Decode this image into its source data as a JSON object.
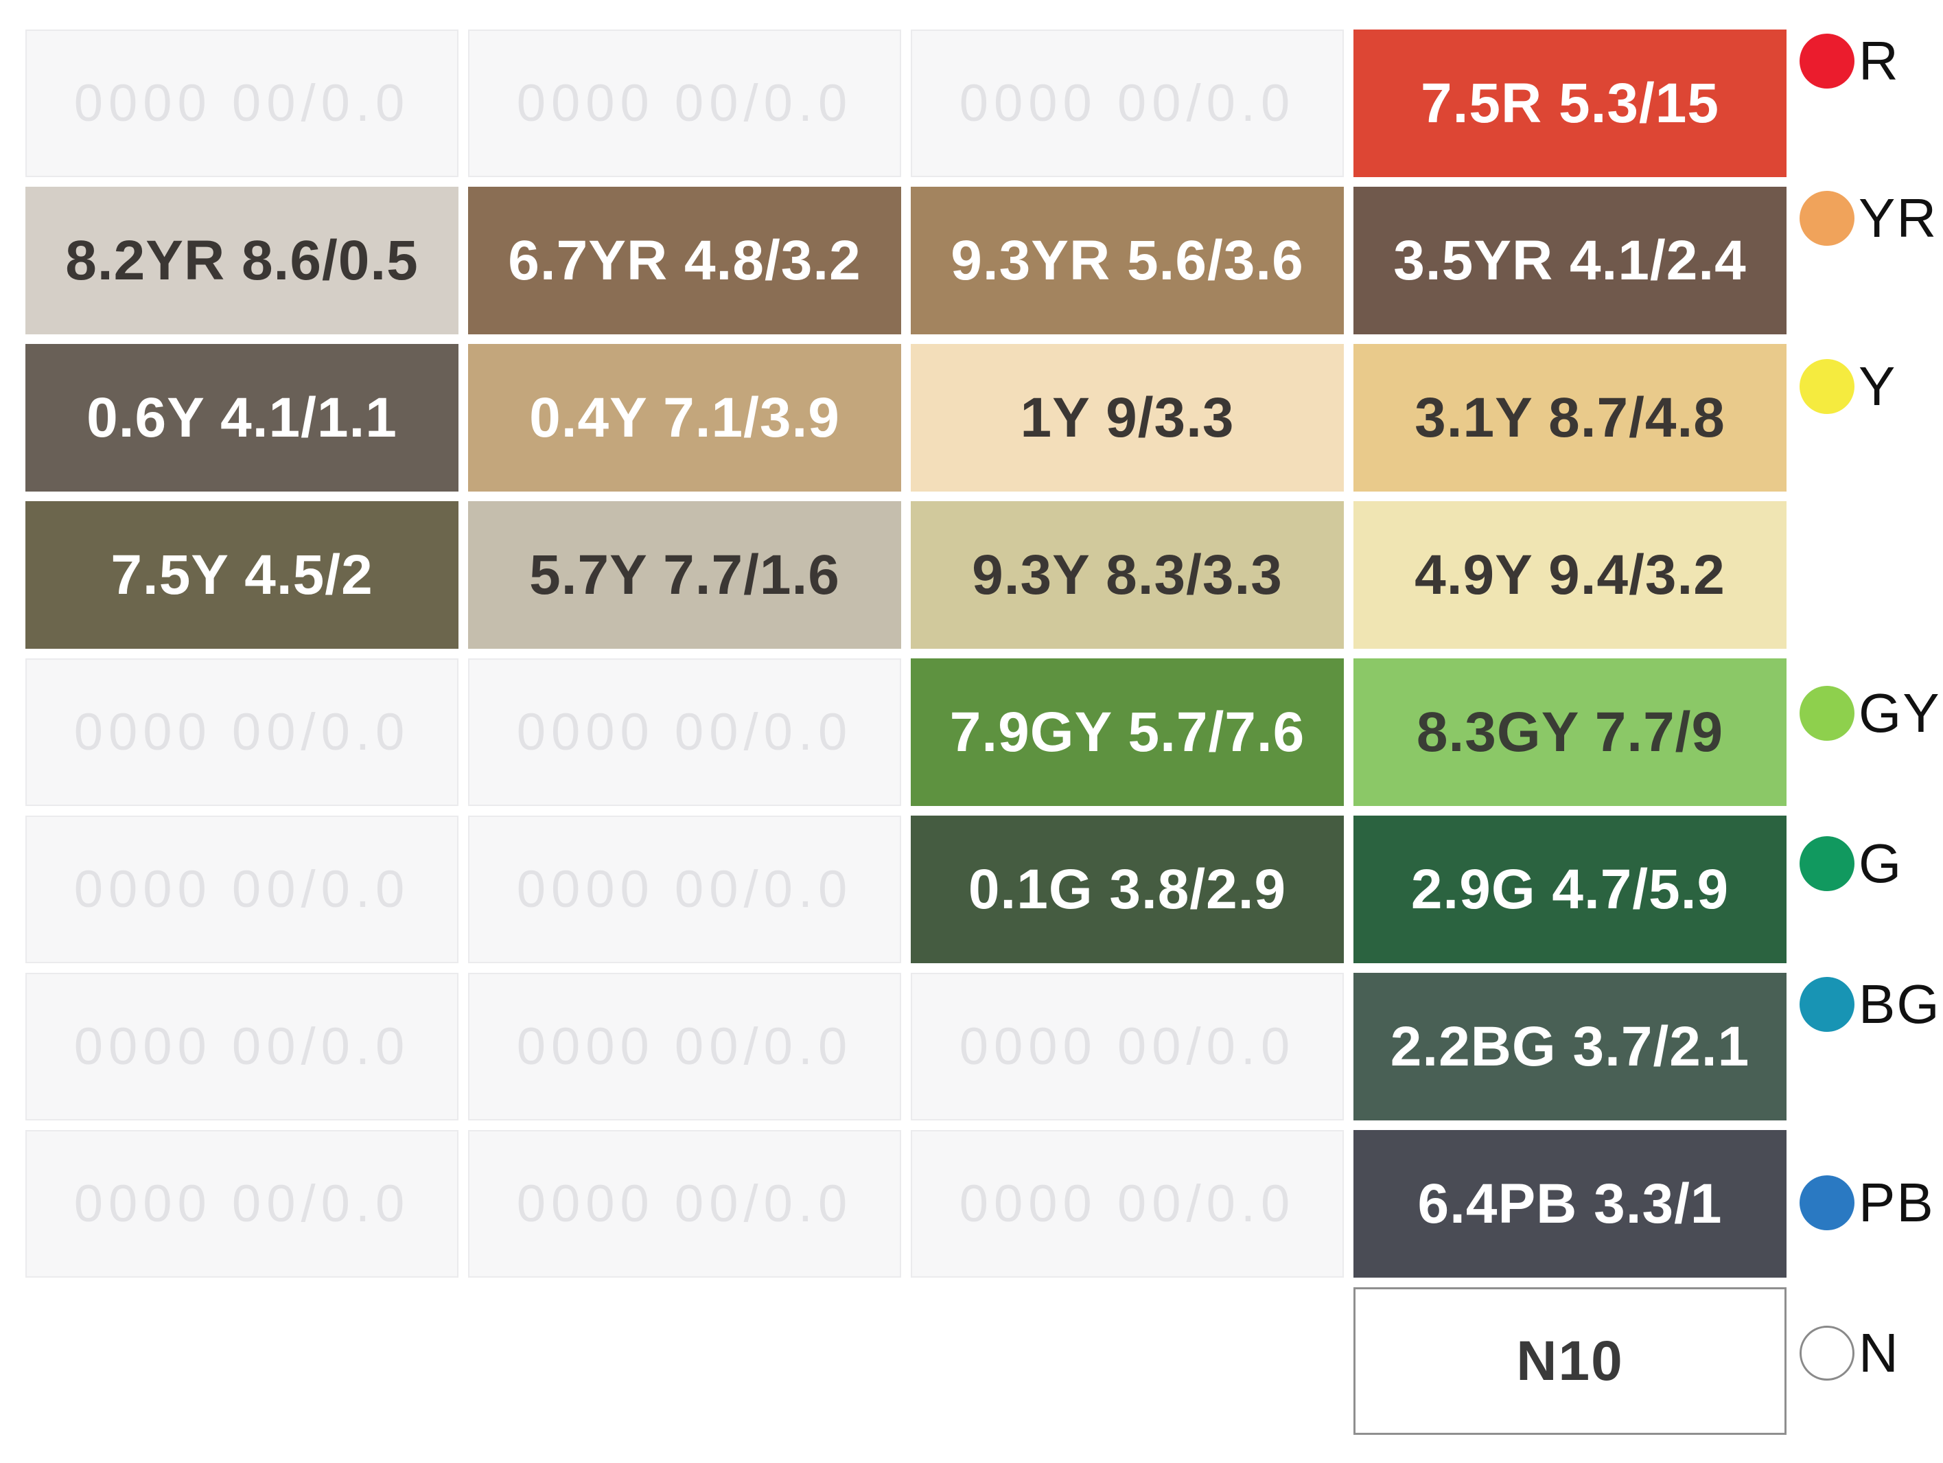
{
  "page": {
    "background": "#ffffff"
  },
  "grid": {
    "rows": [
      {
        "cells": [
          {
            "type": "placeholder",
            "label": "0000 00/0.0",
            "bg": "#f7f7f8",
            "fg": "#e2e2e5"
          },
          {
            "type": "placeholder",
            "label": "0000 00/0.0",
            "bg": "#f7f7f8",
            "fg": "#e2e2e5"
          },
          {
            "type": "placeholder",
            "label": "0000 00/0.0",
            "bg": "#f7f7f8",
            "fg": "#e2e2e5"
          },
          {
            "type": "swatch",
            "label": "7.5R 5.3/15",
            "bg": "#dd4634",
            "fg": "#ffffff"
          }
        ]
      },
      {
        "cells": [
          {
            "type": "swatch",
            "label": "8.2YR 8.6/0.5",
            "bg": "#d5cfc7",
            "fg": "#3b3734"
          },
          {
            "type": "swatch",
            "label": "6.7YR 4.8/3.2",
            "bg": "#8a6e54",
            "fg": "#ffffff"
          },
          {
            "type": "swatch",
            "label": "9.3YR 5.6/3.6",
            "bg": "#a3845f",
            "fg": "#ffffff"
          },
          {
            "type": "swatch",
            "label": "3.5YR 4.1/2.4",
            "bg": "#70594c",
            "fg": "#ffffff"
          }
        ]
      },
      {
        "cells": [
          {
            "type": "swatch",
            "label": "0.6Y 4.1/1.1",
            "bg": "#696057",
            "fg": "#ffffff"
          },
          {
            "type": "swatch",
            "label": "0.4Y 7.1/3.9",
            "bg": "#c3a67c",
            "fg": "#ffffff"
          },
          {
            "type": "swatch",
            "label": "1Y 9/3.3",
            "bg": "#f3deba",
            "fg": "#3b3734"
          },
          {
            "type": "swatch",
            "label": "3.1Y 8.7/4.8",
            "bg": "#e9ca8b",
            "fg": "#3b3734"
          }
        ]
      },
      {
        "cells": [
          {
            "type": "swatch",
            "label": "7.5Y 4.5/2",
            "bg": "#6c664d",
            "fg": "#ffffff"
          },
          {
            "type": "swatch",
            "label": "5.7Y 7.7/1.6",
            "bg": "#c5bead",
            "fg": "#3b3734"
          },
          {
            "type": "swatch",
            "label": "9.3Y 8.3/3.3",
            "bg": "#d1c99c",
            "fg": "#3b3734"
          },
          {
            "type": "swatch",
            "label": "4.9Y 9.4/3.2",
            "bg": "#f0e5b3",
            "fg": "#3b3734"
          }
        ]
      },
      {
        "cells": [
          {
            "type": "placeholder",
            "label": "0000 00/0.0",
            "bg": "#f7f7f8",
            "fg": "#e2e2e5"
          },
          {
            "type": "placeholder",
            "label": "0000 00/0.0",
            "bg": "#f7f7f8",
            "fg": "#e2e2e5"
          },
          {
            "type": "swatch",
            "label": "7.9GY 5.7/7.6",
            "bg": "#5e9240",
            "fg": "#ffffff"
          },
          {
            "type": "swatch",
            "label": "8.3GY 7.7/9",
            "bg": "#8bc867",
            "fg": "#3a3d35"
          }
        ]
      },
      {
        "cells": [
          {
            "type": "placeholder",
            "label": "0000 00/0.0",
            "bg": "#f7f7f8",
            "fg": "#e2e2e5"
          },
          {
            "type": "placeholder",
            "label": "0000 00/0.0",
            "bg": "#f7f7f8",
            "fg": "#e2e2e5"
          },
          {
            "type": "swatch",
            "label": "0.1G 3.8/2.9",
            "bg": "#455c41",
            "fg": "#ffffff"
          },
          {
            "type": "swatch",
            "label": "2.9G 4.7/5.9",
            "bg": "#2b6340",
            "fg": "#ffffff"
          }
        ]
      },
      {
        "cells": [
          {
            "type": "placeholder",
            "label": "0000 00/0.0",
            "bg": "#f7f7f8",
            "fg": "#e2e2e5"
          },
          {
            "type": "placeholder",
            "label": "0000 00/0.0",
            "bg": "#f7f7f8",
            "fg": "#e2e2e5"
          },
          {
            "type": "placeholder",
            "label": "0000 00/0.0",
            "bg": "#f7f7f8",
            "fg": "#e2e2e5"
          },
          {
            "type": "swatch",
            "label": "2.2BG 3.7/2.1",
            "bg": "#496055",
            "fg": "#ffffff"
          }
        ]
      },
      {
        "cells": [
          {
            "type": "placeholder",
            "label": "0000 00/0.0",
            "bg": "#f7f7f8",
            "fg": "#e2e2e5"
          },
          {
            "type": "placeholder",
            "label": "0000 00/0.0",
            "bg": "#f7f7f8",
            "fg": "#e2e2e5"
          },
          {
            "type": "placeholder",
            "label": "0000 00/0.0",
            "bg": "#f7f7f8",
            "fg": "#e2e2e5"
          },
          {
            "type": "swatch",
            "label": "6.4PB 3.3/1",
            "bg": "#4a4c55",
            "fg": "#ffffff"
          }
        ]
      },
      {
        "cells": [
          {
            "type": "blank",
            "label": ""
          },
          {
            "type": "blank",
            "label": ""
          },
          {
            "type": "blank",
            "label": ""
          },
          {
            "type": "swatch",
            "label": "N10",
            "bg": "#ffffff",
            "fg": "#3a3a3a",
            "border": "#8f8f8f"
          }
        ]
      }
    ]
  },
  "legend": {
    "items": [
      {
        "label": "R",
        "color": "#eb1c2d"
      },
      {
        "label": "YR",
        "color": "#f0a35b"
      },
      {
        "label": "Y",
        "color": "#f5eb3f"
      },
      {
        "label": "GY",
        "color": "#8ed04d"
      },
      {
        "label": "G",
        "color": "#11995f"
      },
      {
        "label": "BG",
        "color": "#1894b4"
      },
      {
        "label": "PB",
        "color": "#2a79c2"
      },
      {
        "label": "N",
        "color": "#ffffff",
        "border": "#8a8a8a"
      }
    ]
  },
  "chart_data": {
    "type": "table",
    "title": "",
    "columns": 4,
    "rows": 9,
    "legend": [
      "R",
      "YR",
      "Y",
      "GY",
      "G",
      "BG",
      "PB",
      "N"
    ],
    "legend_position": "right",
    "cells": [
      [
        "0000 00/0.0",
        "0000 00/0.0",
        "0000 00/0.0",
        "7.5R 5.3/15"
      ],
      [
        "8.2YR 8.6/0.5",
        "6.7YR 4.8/3.2",
        "9.3YR 5.6/3.6",
        "3.5YR 4.1/2.4"
      ],
      [
        "0.6Y 4.1/1.1",
        "0.4Y 7.1/3.9",
        "1Y 9/3.3",
        "3.1Y 8.7/4.8"
      ],
      [
        "7.5Y 4.5/2",
        "5.7Y 7.7/1.6",
        "9.3Y 8.3/3.3",
        "4.9Y 9.4/3.2"
      ],
      [
        "0000 00/0.0",
        "0000 00/0.0",
        "7.9GY 5.7/7.6",
        "8.3GY 7.7/9"
      ],
      [
        "0000 00/0.0",
        "0000 00/0.0",
        "0.1G 3.8/2.9",
        "2.9G 4.7/5.9"
      ],
      [
        "0000 00/0.0",
        "0000 00/0.0",
        "0000 00/0.0",
        "2.2BG 3.7/2.1"
      ],
      [
        "0000 00/0.0",
        "0000 00/0.0",
        "0000 00/0.0",
        "6.4PB 3.3/1"
      ],
      [
        null,
        null,
        null,
        "N10"
      ]
    ],
    "swatch_colors": [
      [
        "#f7f7f8",
        "#f7f7f8",
        "#f7f7f8",
        "#dd4634"
      ],
      [
        "#d5cfc7",
        "#8a6e54",
        "#a3845f",
        "#70594c"
      ],
      [
        "#696057",
        "#c3a67c",
        "#f3deba",
        "#e9ca8b"
      ],
      [
        "#6c664d",
        "#c5bead",
        "#d1c99c",
        "#f0e5b3"
      ],
      [
        "#f7f7f8",
        "#f7f7f8",
        "#5e9240",
        "#8bc867"
      ],
      [
        "#f7f7f8",
        "#f7f7f8",
        "#455c41",
        "#2b6340"
      ],
      [
        "#f7f7f8",
        "#f7f7f8",
        "#f7f7f8",
        "#496055"
      ],
      [
        "#f7f7f8",
        "#f7f7f8",
        "#f7f7f8",
        "#4a4c55"
      ],
      [
        null,
        null,
        null,
        "#ffffff"
      ]
    ]
  }
}
